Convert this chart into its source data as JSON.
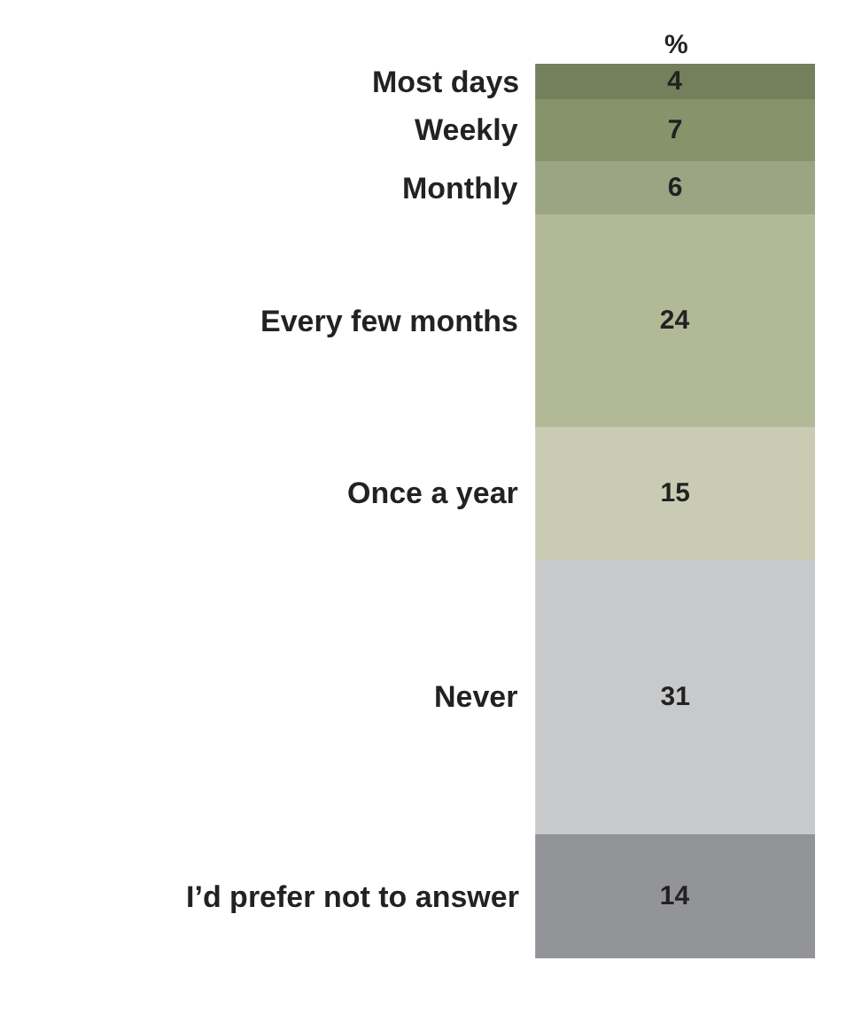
{
  "chart_data": {
    "type": "bar",
    "stacked": true,
    "categories": [
      null
    ],
    "data_labels": true,
    "legend": false,
    "ylim": [
      0,
      101
    ],
    "annotations": [
      "%"
    ],
    "series": [
      {
        "name": "I’d prefer not to answer",
        "color": "#939497",
        "values": [
          14
        ]
      },
      {
        "name": "Never",
        "color": "#c8c9cb",
        "values": [
          31
        ]
      },
      {
        "name": "Once a year",
        "color": "#c9ccb3",
        "values": [
          15
        ]
      },
      {
        "name": "Every few months",
        "color": "#b2b996",
        "values": [
          24
        ]
      },
      {
        "name": "Monthly",
        "color": "#9ca583",
        "values": [
          6
        ]
      },
      {
        "name": "Weekly",
        "color": "#87946b",
        "values": [
          7
        ]
      },
      {
        "name": "Most days",
        "color": "#747f5b",
        "values": [
          4
        ]
      }
    ]
  }
}
